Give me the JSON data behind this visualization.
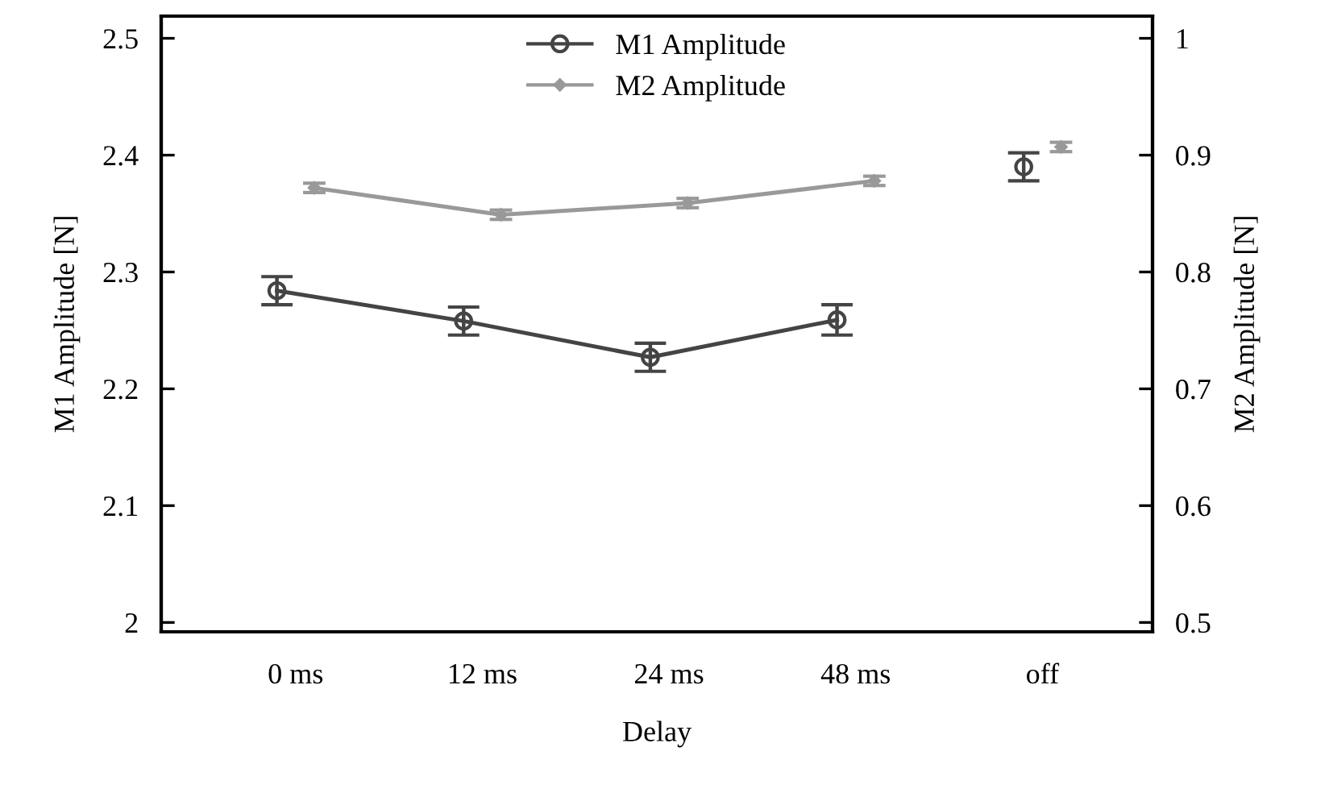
{
  "chart_data": {
    "type": "line",
    "xlabel": "Delay",
    "ylabel": "M1 Amplitude [N]",
    "y2label": "M2 Amplitude [N]",
    "categories": [
      "0 ms",
      "12 ms",
      "24 ms",
      "48 ms",
      "off"
    ],
    "series": [
      {
        "name": "M1 Amplitude",
        "color": "#444444",
        "marker": "circle",
        "values": [
          2.284,
          2.258,
          2.227,
          2.259,
          null
        ],
        "errors": [
          0.012,
          0.012,
          0.012,
          0.013,
          null
        ]
      },
      {
        "name": "M2 Amplitude",
        "color": "#999999",
        "marker": "diamond",
        "axis": "y2",
        "values": [
          0.872,
          0.849,
          0.859,
          0.878,
          null
        ],
        "errors": [
          0.004,
          0.004,
          0.004,
          0.004,
          null
        ]
      },
      {
        "type": "scatter",
        "color": "#444444",
        "marker": "circle",
        "x": [
          "off"
        ],
        "values": [
          2.39
        ],
        "errors": [
          0.012
        ]
      },
      {
        "type": "scatter",
        "color": "#999999",
        "marker": "diamond",
        "axis": "y2",
        "x": [
          "off"
        ],
        "values": [
          0.907
        ],
        "errors": [
          0.004
        ]
      }
    ],
    "ylim": [
      1.992,
      2.519
    ],
    "yticks": [
      2,
      2.1,
      2.2,
      2.3,
      2.4,
      2.5
    ],
    "y2lim": [
      0.492,
      1.019
    ],
    "y2ticks": [
      0.5,
      0.6,
      0.7,
      0.8,
      0.9,
      1
    ],
    "grid": false,
    "legend": "top",
    "line_style": "solid"
  }
}
